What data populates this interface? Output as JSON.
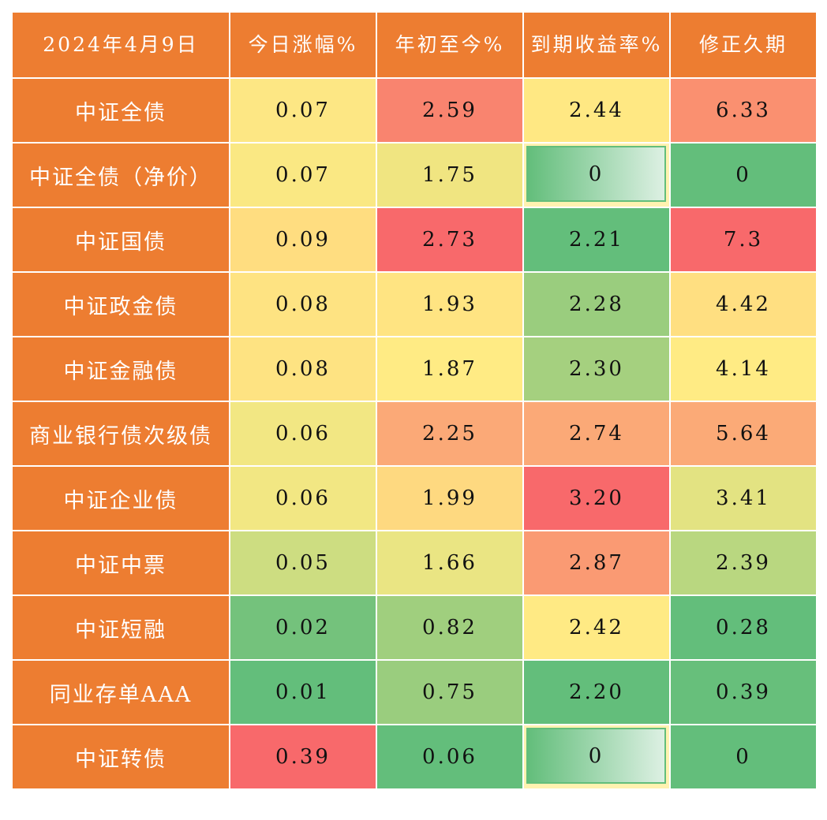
{
  "header": [
    "2024年4月9日",
    "今日涨幅%",
    "年初至今%",
    "到期收益率%",
    "修正久期"
  ],
  "rows": [
    {
      "label": "中证全债",
      "cells": [
        {
          "v": "0.07",
          "c": "#FDE784"
        },
        {
          "v": "2.59",
          "c": "#F9846F"
        },
        {
          "v": "2.44",
          "c": "#FFE883"
        },
        {
          "v": "6.33",
          "c": "#FA9070"
        }
      ]
    },
    {
      "label": "中证全债（净价）",
      "cells": [
        {
          "v": "0.07",
          "c": "#FAE883"
        },
        {
          "v": "1.75",
          "c": "#F0E581"
        },
        {
          "v": "0",
          "c": "#63BE7B",
          "databar": true
        },
        {
          "v": "0",
          "c": "#63BE7B"
        }
      ]
    },
    {
      "label": "中证国债",
      "cells": [
        {
          "v": "0.09",
          "c": "#FFDD80"
        },
        {
          "v": "2.73",
          "c": "#F8696B"
        },
        {
          "v": "2.21",
          "c": "#63BE7B"
        },
        {
          "v": "7.3",
          "c": "#F8696B"
        }
      ]
    },
    {
      "label": "中证政金债",
      "cells": [
        {
          "v": "0.08",
          "c": "#FEE382"
        },
        {
          "v": "1.93",
          "c": "#FFE482"
        },
        {
          "v": "2.28",
          "c": "#9ACD7E"
        },
        {
          "v": "4.42",
          "c": "#FFDF81"
        }
      ]
    },
    {
      "label": "中证金融债",
      "cells": [
        {
          "v": "0.08",
          "c": "#FEE382"
        },
        {
          "v": "1.87",
          "c": "#FFEB84"
        },
        {
          "v": "2.30",
          "c": "#A5D07F"
        },
        {
          "v": "4.14",
          "c": "#FFEB84"
        }
      ]
    },
    {
      "label": "商业银行债次级债",
      "cells": [
        {
          "v": "0.06",
          "c": "#F2E783"
        },
        {
          "v": "2.25",
          "c": "#FBA977"
        },
        {
          "v": "2.74",
          "c": "#FBA977"
        },
        {
          "v": "5.64",
          "c": "#FBAA77"
        }
      ]
    },
    {
      "label": "中证企业债",
      "cells": [
        {
          "v": "0.06",
          "c": "#F2E783"
        },
        {
          "v": "1.99",
          "c": "#FED980"
        },
        {
          "v": "3.20",
          "c": "#F8696B"
        },
        {
          "v": "3.41",
          "c": "#E3E382"
        }
      ]
    },
    {
      "label": "中证中票",
      "cells": [
        {
          "v": "0.05",
          "c": "#CDDD81"
        },
        {
          "v": "1.66",
          "c": "#EAE583"
        },
        {
          "v": "2.87",
          "c": "#FA9A73"
        },
        {
          "v": "2.39",
          "c": "#B9D780"
        }
      ]
    },
    {
      "label": "中证短融",
      "cells": [
        {
          "v": "0.02",
          "c": "#74C27C"
        },
        {
          "v": "0.82",
          "c": "#A0CF7E"
        },
        {
          "v": "2.42",
          "c": "#FFEA84"
        },
        {
          "v": "0.28",
          "c": "#63BE7B"
        }
      ]
    },
    {
      "label": "同业存单AAA",
      "cells": [
        {
          "v": "0.01",
          "c": "#63BE7B"
        },
        {
          "v": "0.75",
          "c": "#9ACD7E"
        },
        {
          "v": "2.20",
          "c": "#63BE7B"
        },
        {
          "v": "0.39",
          "c": "#67BF7B"
        }
      ]
    },
    {
      "label": "中证转债",
      "cells": [
        {
          "v": "0.39",
          "c": "#F8696B"
        },
        {
          "v": "0.06",
          "c": "#63BE7B"
        },
        {
          "v": "0",
          "c": "#63BE7B",
          "databar": true
        },
        {
          "v": "0",
          "c": "#63BE7B"
        }
      ]
    }
  ],
  "colors": {
    "header": "#ED7D31",
    "green": "#63BE7B",
    "yellow": "#FFEB84",
    "red": "#F8696B"
  }
}
